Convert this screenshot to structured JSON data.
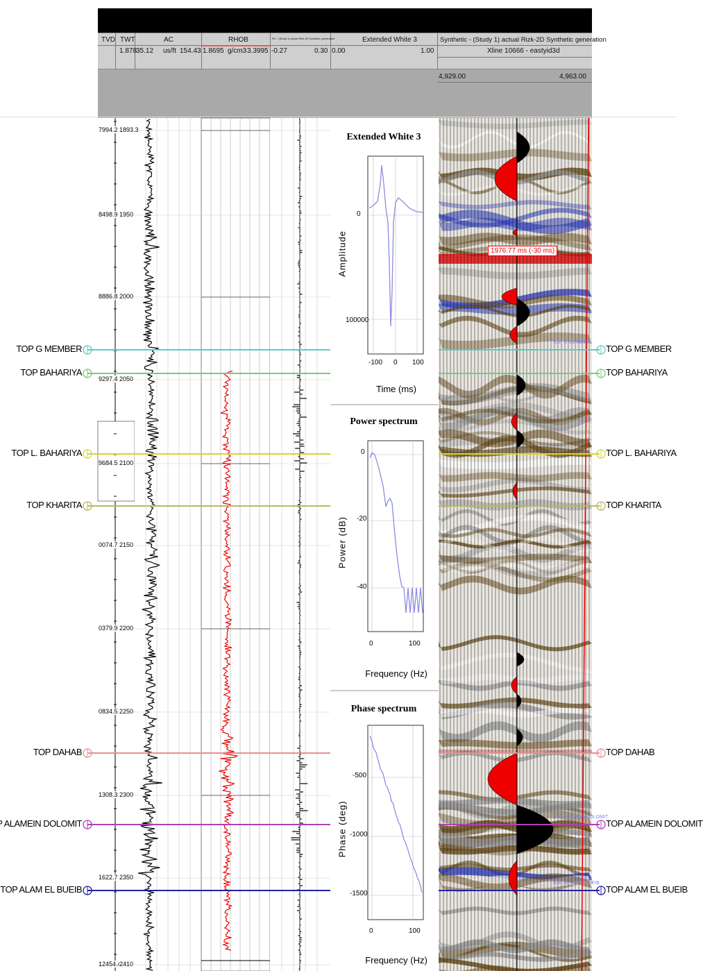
{
  "header": {
    "tvd": "TVD",
    "twt": "TWT",
    "ac": "AC",
    "rhob": "RHOB",
    "rc_small": "RC - (Study 1) actual Rizk-2D Synthetic generation",
    "wavelet": "Extended White 3",
    "synthetic": "Synthetic - (Study 1) actual Rizk-2D Synthetic generation",
    "twt_val": "1.878",
    "ac_min": "35.12",
    "ac_unit": "us/ft",
    "ac_max": "154.43",
    "rhob_min": "1.8695",
    "rhob_unit": "g/cm3",
    "rhob_max": "3.3995",
    "rc_min": "-0.27",
    "rc_max": "0.30",
    "wav_min": "0.00",
    "wav_max": "1.00",
    "xline": "Xline 10666 - eastyid3d",
    "x_min": "4,929.00",
    "x_max": "4,963.00"
  },
  "depth_ticks": [
    {
      "tvd": "7994.2",
      "twt": "1893.3"
    },
    {
      "tvd": "8498.9",
      "twt": "1950"
    },
    {
      "tvd": "8886.8",
      "twt": "2000"
    },
    {
      "tvd": "9297.4",
      "twt": "2050"
    },
    {
      "tvd": "9684.5",
      "twt": "2100"
    },
    {
      "tvd": "0074.7",
      "twt": "2150"
    },
    {
      "tvd": "0379.9",
      "twt": "2200"
    },
    {
      "tvd": "0834.5",
      "twt": "2250"
    },
    {
      "tvd": "1308.3",
      "twt": "2300"
    },
    {
      "tvd": "1622.7",
      "twt": "2350"
    },
    {
      "tvd": "12454.4",
      "twt": "2410"
    }
  ],
  "markers": [
    {
      "name": "TOP G MEMBER",
      "color": "#5fc8c8"
    },
    {
      "name": "TOP BAHARIYA",
      "color": "#77cc77"
    },
    {
      "name": "TOP L. BAHARIYA",
      "color": "#d6d630"
    },
    {
      "name": "TOP KHARITA",
      "color": "#b8b860"
    },
    {
      "name": "TOP DAHAB",
      "color": "#e89090"
    },
    {
      "name": "TOP ALAMEIN DOLOMIT",
      "color": "#b040b0"
    },
    {
      "name": "TOP ALAM EL BUEIB",
      "color": "#2020a0"
    }
  ],
  "time_shift_label": "1976.77 ms (-30 ms)",
  "seismic_marker_tags": [
    "TOP G MEMBER",
    "TOP ALAMEIN DOLOMIT",
    "TOP ALAM EL BUEIB"
  ],
  "panels": {
    "wavelet": {
      "title": "Extended White 3",
      "ylabel": "Amplitude",
      "xlabel": "Time (ms)",
      "yticks": [
        "0",
        "100000"
      ],
      "xticks": [
        "-100",
        "0",
        "100"
      ]
    },
    "power": {
      "title": "Power spectrum",
      "ylabel": "Power (dB)",
      "xlabel": "Frequency (Hz)",
      "yticks": [
        "0",
        "-20",
        "-40"
      ],
      "xticks": [
        "0",
        "100"
      ]
    },
    "phase": {
      "title": "Phase spectrum",
      "ylabel": "Phase (deg)",
      "xlabel": "Frequency (Hz)",
      "yticks": [
        "-500",
        "-1000",
        "-1500"
      ],
      "xticks": [
        "0",
        "100"
      ]
    }
  },
  "colors": {
    "log_black": "#000000",
    "rhob_red": "#ee0000",
    "spectrum_line": "#8c8ce0",
    "seismic_brown": "#6b5020",
    "seismic_blue": "#3040c0",
    "wiggle_red": "#ee0000"
  }
}
